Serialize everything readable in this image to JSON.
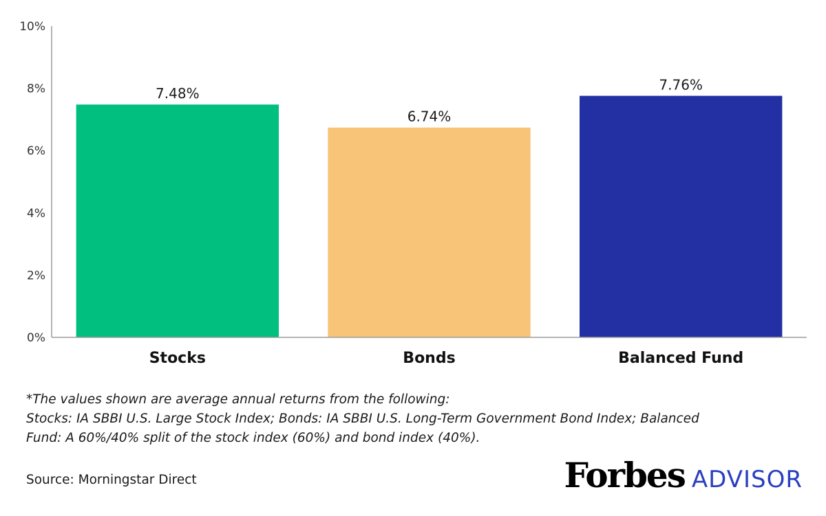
{
  "chart_data": {
    "type": "bar",
    "categories": [
      "Stocks",
      "Bonds",
      "Balanced Fund"
    ],
    "values": [
      7.48,
      6.74,
      7.76
    ],
    "value_labels": [
      "7.48%",
      "6.74%",
      "7.76%"
    ],
    "colors": [
      "#00bf7f",
      "#f8c478",
      "#2230a3"
    ],
    "ylim": [
      0,
      10
    ],
    "y_ticks": [
      0,
      2,
      4,
      6,
      8,
      10
    ],
    "y_tick_labels": [
      "0%",
      "2%",
      "4%",
      "6%",
      "8%",
      "10%"
    ],
    "grid": false,
    "title": "",
    "xlabel": "",
    "ylabel": ""
  },
  "footnote": {
    "lines": [
      "*The values shown are average annual returns from the following:",
      "Stocks: IA SBBI U.S. Large Stock Index; Bonds: IA SBBI U.S. Long-Term Government Bond Index; Balanced",
      "Fund: A 60%/40% split of the stock index (60%) and bond index (40%)."
    ]
  },
  "source": "Source: Morningstar Direct",
  "logo": {
    "brand": "Forbes",
    "suffix": "ADVISOR",
    "suffix_color": "#2a3fbf"
  }
}
